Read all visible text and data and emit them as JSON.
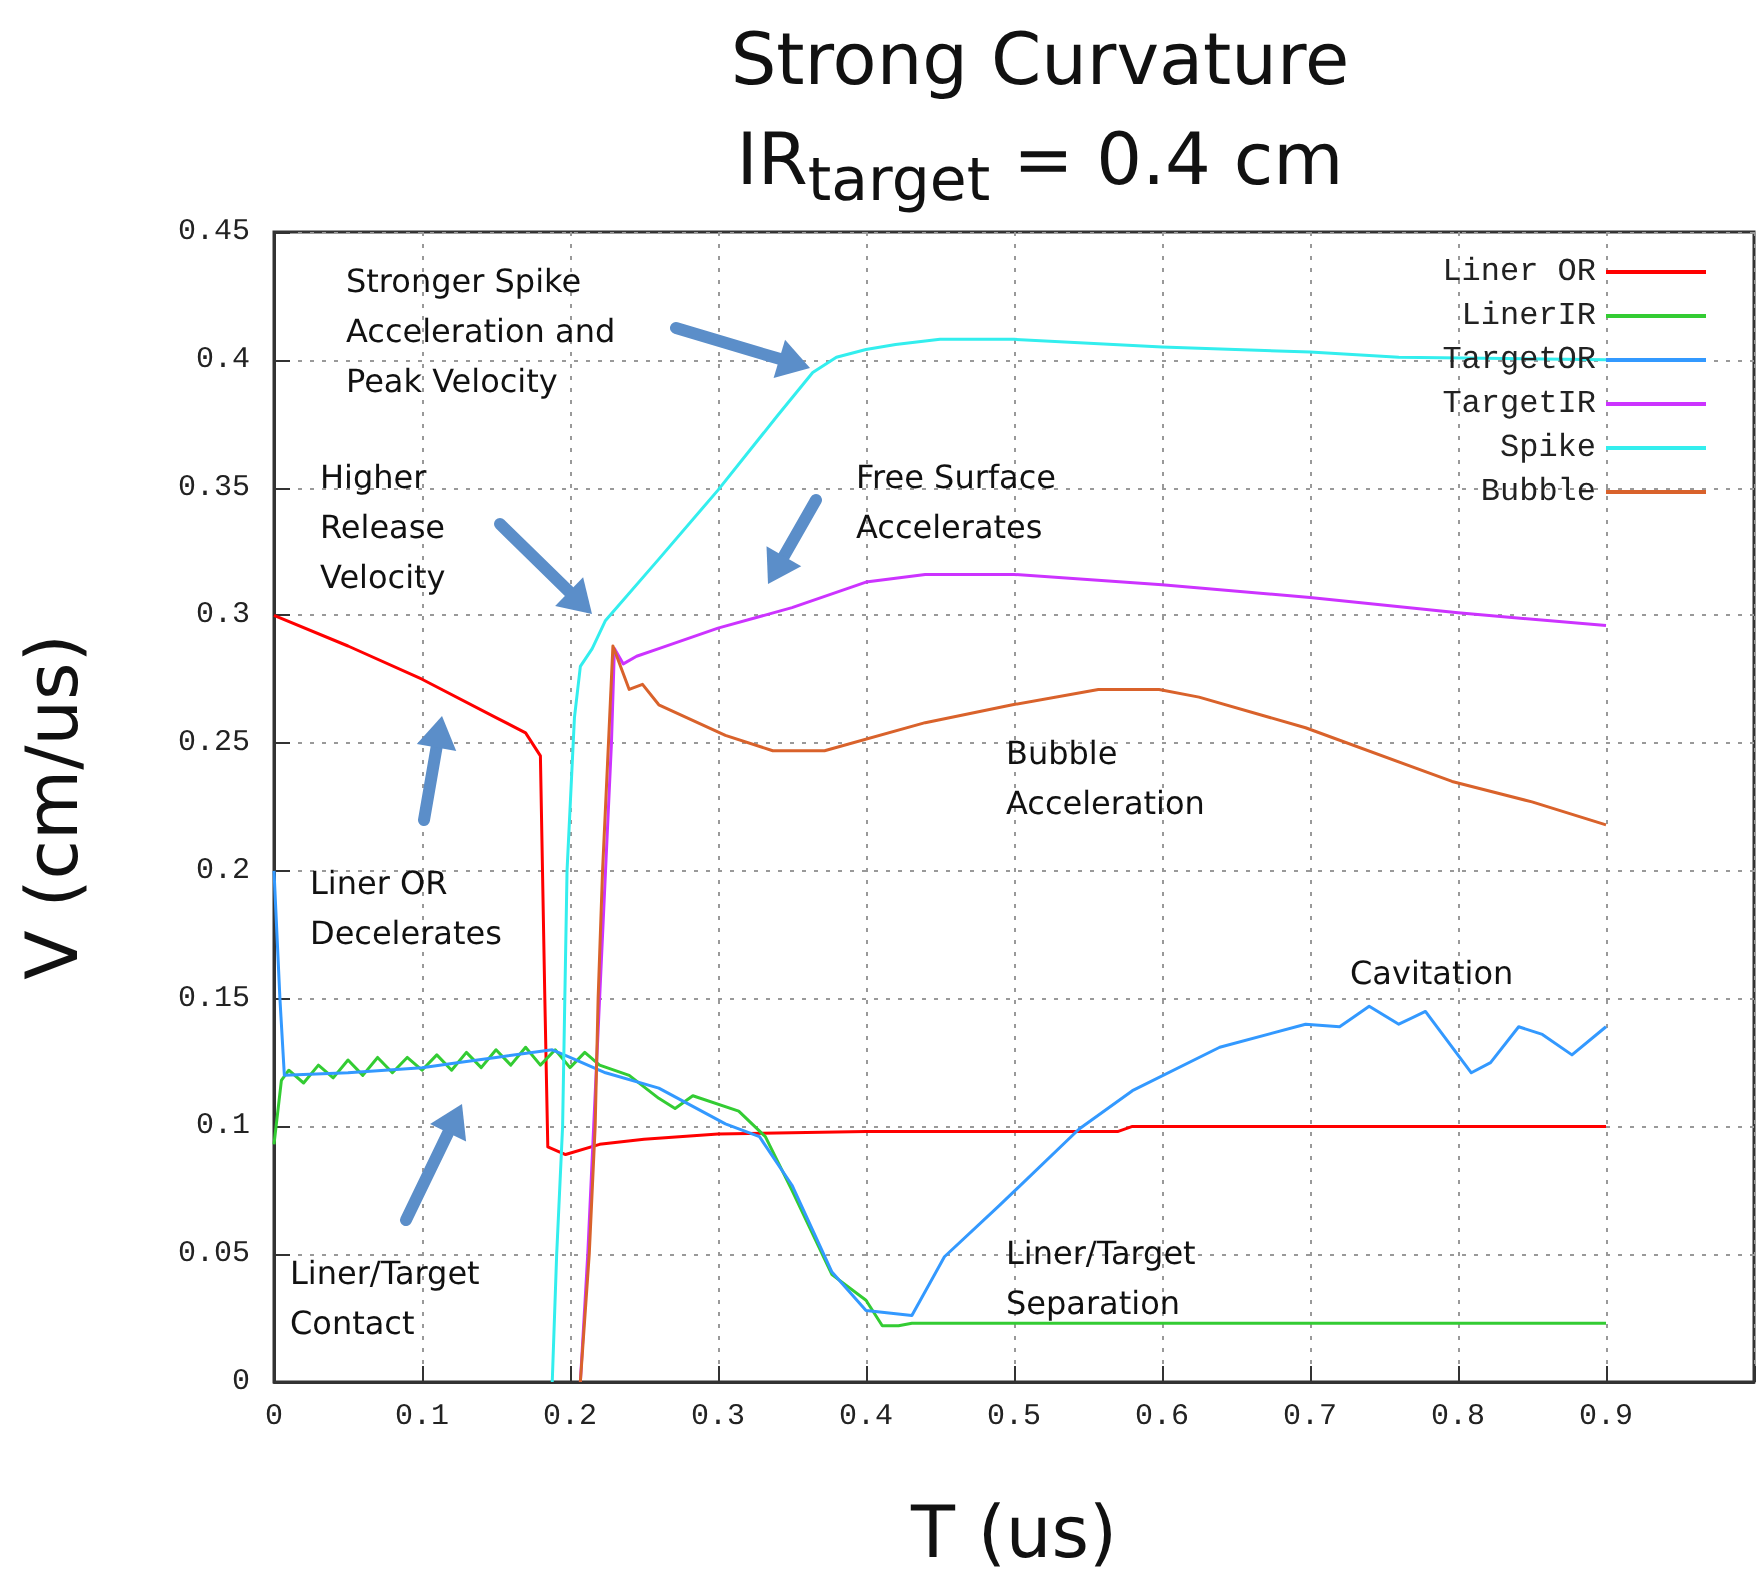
{
  "chart_data": {
    "type": "line",
    "title": "Strong Curvature",
    "subtitle": "IR$_{target}$ = 0.4 cm",
    "xlabel": "T (us)",
    "ylabel": "V (cm/us)",
    "annotations": [
      "Stronger Spike\nAcceleration and\nPeak Velocity",
      "Higher\nRelease\nVelocity",
      "Free Surface\nAccelerates",
      "Bubble\nAcceleration",
      "Liner OR\nDecelerates",
      "Liner/Target\nContact",
      "Cavitation",
      "Liner/Target\nSeparation"
    ],
    "xlim": [
      0,
      1
    ],
    "ylim": [
      0,
      0.45
    ],
    "xticks": [
      0,
      0.1,
      0.2,
      0.3,
      0.4,
      0.5,
      0.6,
      0.7,
      0.8,
      0.9,
      {
        "value": 1,
        "label": null
      }
    ],
    "yticks": [
      0,
      0.05,
      0.1,
      0.15,
      0.2,
      0.25,
      0.3,
      0.35,
      0.4,
      0.45
    ],
    "grid": true,
    "legend": "top right",
    "marker": "none",
    "line_style": "solid",
    "series": [
      {
        "name": "Liner OR",
        "color": "#ff0000",
        "x": [
          0,
          0.05,
          0.1,
          0.15,
          0.17,
          0.18,
          0.183,
          0.185,
          0.197,
          0.22,
          0.25,
          0.3,
          0.4,
          0.57,
          0.58,
          0.9
        ],
        "values": [
          0.3,
          0.288,
          0.275,
          0.26,
          0.254,
          0.245,
          0.15,
          0.092,
          0.089,
          0.093,
          0.095,
          0.097,
          0.098,
          0.098,
          0.1,
          0.1
        ]
      },
      {
        "name": "LinerIR",
        "color": "#33cc33",
        "x": [
          0,
          0.005,
          0.01,
          0.02,
          0.03,
          0.04,
          0.05,
          0.06,
          0.07,
          0.08,
          0.09,
          0.1,
          0.11,
          0.12,
          0.13,
          0.14,
          0.15,
          0.16,
          0.17,
          0.18,
          0.19,
          0.2,
          0.21,
          0.22,
          0.24,
          0.26,
          0.271,
          0.283,
          0.314,
          0.332,
          0.35,
          0.377,
          0.4,
          0.411,
          0.422,
          0.431,
          0.9
        ],
        "values": [
          0.093,
          0.118,
          0.122,
          0.117,
          0.124,
          0.119,
          0.126,
          0.12,
          0.127,
          0.121,
          0.127,
          0.122,
          0.128,
          0.122,
          0.129,
          0.123,
          0.13,
          0.124,
          0.131,
          0.124,
          0.13,
          0.123,
          0.129,
          0.124,
          0.12,
          0.111,
          0.107,
          0.112,
          0.106,
          0.096,
          0.075,
          0.042,
          0.032,
          0.022,
          0.022,
          0.023,
          0.023
        ]
      },
      {
        "name": "TargetOR",
        "color": "#3399ff",
        "x": [
          0,
          0.004,
          0.007,
          0.05,
          0.1,
          0.125,
          0.15,
          0.188,
          0.2,
          0.224,
          0.26,
          0.305,
          0.328,
          0.35,
          0.377,
          0.4,
          0.431,
          0.453,
          0.49,
          0.544,
          0.58,
          0.639,
          0.697,
          0.72,
          0.74,
          0.76,
          0.778,
          0.809,
          0.822,
          0.841,
          0.857,
          0.877,
          0.9
        ],
        "values": [
          0.2,
          0.15,
          0.12,
          0.121,
          0.123,
          0.125,
          0.127,
          0.13,
          0.127,
          0.121,
          0.115,
          0.101,
          0.096,
          0.077,
          0.043,
          0.028,
          0.026,
          0.049,
          0.069,
          0.099,
          0.114,
          0.131,
          0.14,
          0.139,
          0.147,
          0.14,
          0.145,
          0.121,
          0.125,
          0.139,
          0.136,
          0.128,
          0.139
        ]
      },
      {
        "name": "TargetIR",
        "color": "#cc33ff",
        "x": [
          0.207,
          0.212,
          0.216,
          0.22,
          0.224,
          0.228,
          0.23,
          0.236,
          0.245,
          0.26,
          0.3,
          0.35,
          0.4,
          0.44,
          0.5,
          0.6,
          0.7,
          0.8,
          0.9
        ],
        "values": [
          0,
          0.05,
          0.1,
          0.15,
          0.2,
          0.25,
          0.287,
          0.281,
          0.284,
          0.287,
          0.295,
          0.303,
          0.313,
          0.316,
          0.316,
          0.312,
          0.307,
          0.301,
          0.296
        ]
      },
      {
        "name": "Spike",
        "color": "#33eeee",
        "x": [
          0.188,
          0.191,
          0.195,
          0.198,
          0.203,
          0.207,
          0.215,
          0.224,
          0.26,
          0.3,
          0.34,
          0.364,
          0.38,
          0.4,
          0.42,
          0.45,
          0.5,
          0.6,
          0.7,
          0.76,
          0.9
        ],
        "values": [
          0,
          0.05,
          0.1,
          0.2,
          0.26,
          0.28,
          0.287,
          0.298,
          0.322,
          0.349,
          0.378,
          0.395,
          0.401,
          0.404,
          0.406,
          0.408,
          0.408,
          0.405,
          0.403,
          0.401,
          0.4
        ]
      },
      {
        "name": "Bubble",
        "color": "#d9622b",
        "x": [
          0.207,
          0.213,
          0.217,
          0.219,
          0.222,
          0.226,
          0.229,
          0.24,
          0.249,
          0.26,
          0.305,
          0.337,
          0.372,
          0.44,
          0.499,
          0.557,
          0.598,
          0.625,
          0.697,
          0.796,
          0.85,
          0.9
        ],
        "values": [
          0,
          0.05,
          0.1,
          0.15,
          0.2,
          0.25,
          0.288,
          0.271,
          0.273,
          0.265,
          0.253,
          0.247,
          0.247,
          0.258,
          0.265,
          0.271,
          0.271,
          0.268,
          0.256,
          0.235,
          0.227,
          0.218
        ]
      }
    ]
  }
}
